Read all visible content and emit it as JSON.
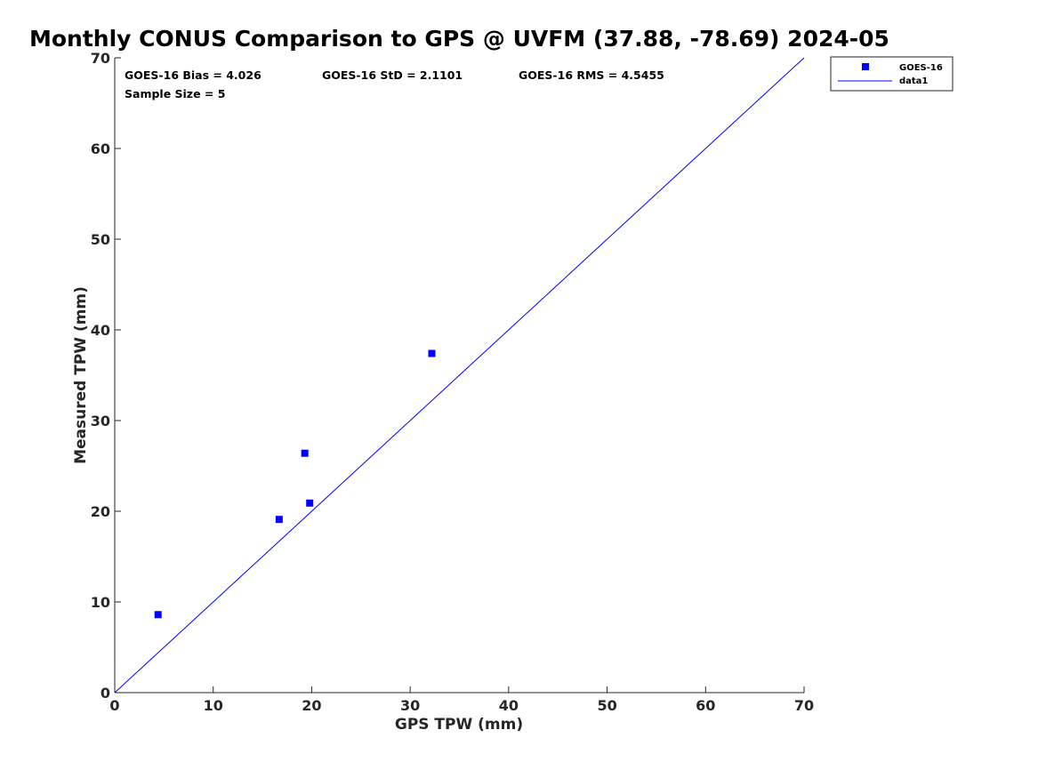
{
  "chart_data": {
    "type": "scatter",
    "title": "Monthly CONUS Comparison to GPS @ UVFM (37.88, -78.69) 2024-05",
    "xlabel": "GPS TPW (mm)",
    "ylabel": "Measured TPW (mm)",
    "xlim": [
      0,
      70
    ],
    "ylim": [
      0,
      70
    ],
    "xticks": [
      0,
      10,
      20,
      30,
      40,
      50,
      60,
      70
    ],
    "yticks": [
      0,
      10,
      20,
      30,
      40,
      50,
      60,
      70
    ],
    "xtick_labels": [
      "0",
      "10",
      "20",
      "30",
      "40",
      "50",
      "60",
      "70"
    ],
    "ytick_labels": [
      "0",
      "10",
      "20",
      "30",
      "40",
      "50",
      "60",
      "70"
    ],
    "grid": false,
    "legend_position": "outside-top-right",
    "series": [
      {
        "name": "GOES-16",
        "kind": "scatter",
        "marker": "square",
        "color": "#0000ff",
        "points": [
          {
            "x": 4.4,
            "y": 8.6
          },
          {
            "x": 16.7,
            "y": 19.1
          },
          {
            "x": 19.3,
            "y": 26.4
          },
          {
            "x": 19.8,
            "y": 20.9
          },
          {
            "x": 32.2,
            "y": 37.4
          }
        ]
      },
      {
        "name": "data1",
        "kind": "line",
        "color": "#0000ff",
        "points": [
          {
            "x": 0,
            "y": 0
          },
          {
            "x": 70,
            "y": 70
          }
        ]
      }
    ],
    "annotations": {
      "bias": "GOES-16 Bias = 4.026",
      "std": "GOES-16 StD = 2.1101",
      "rms": "GOES-16 RMS = 4.5455",
      "sample": "Sample Size = 5"
    }
  }
}
